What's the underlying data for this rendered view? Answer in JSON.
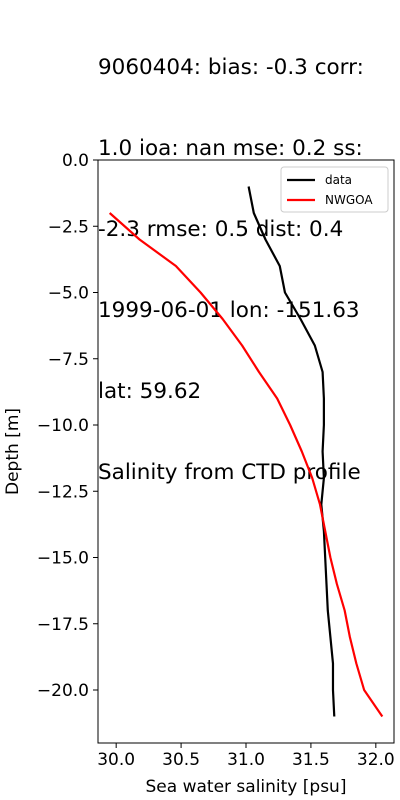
{
  "chart_data": {
    "type": "line",
    "title_lines": [
      "9060404: bias: -0.3  corr:",
      "1.0  ioa: nan  mse: 0.2  ss:",
      "-2.3  rmse: 0.5  dist: 0.4",
      "1999-06-01 lon: -151.63",
      "lat: 59.62",
      "Salinity from CTD profile"
    ],
    "xlabel": "Sea water salinity [psu]",
    "ylabel": "Depth [m]",
    "xlim": [
      29.86,
      32.14
    ],
    "ylim": [
      -22.0,
      0.0
    ],
    "xticks": [
      30.0,
      30.5,
      31.0,
      31.5,
      32.0
    ],
    "xtick_labels": [
      "30.0",
      "30.5",
      "31.0",
      "31.5",
      "32.0"
    ],
    "yticks": [
      0.0,
      -2.5,
      -5.0,
      -7.5,
      -10.0,
      -12.5,
      -15.0,
      -17.5,
      -20.0
    ],
    "ytick_labels": [
      "0.0",
      "−2.5",
      "−5.0",
      "−7.5",
      "−10.0",
      "−12.5",
      "−15.0",
      "−17.5",
      "−20.0"
    ],
    "grid": false,
    "legend_position": "upper right",
    "series": [
      {
        "name": "data",
        "color": "#000000",
        "points": [
          [
            31.02,
            -1.0
          ],
          [
            31.06,
            -2.0
          ],
          [
            31.15,
            -3.0
          ],
          [
            31.26,
            -4.0
          ],
          [
            31.3,
            -5.0
          ],
          [
            31.42,
            -6.0
          ],
          [
            31.53,
            -7.0
          ],
          [
            31.59,
            -8.0
          ],
          [
            31.6,
            -9.0
          ],
          [
            31.6,
            -10.0
          ],
          [
            31.59,
            -11.0
          ],
          [
            31.6,
            -12.0
          ],
          [
            31.58,
            -13.0
          ],
          [
            31.6,
            -14.0
          ],
          [
            31.61,
            -15.0
          ],
          [
            31.62,
            -16.0
          ],
          [
            31.63,
            -17.0
          ],
          [
            31.65,
            -18.0
          ],
          [
            31.67,
            -19.0
          ],
          [
            31.67,
            -20.0
          ],
          [
            31.68,
            -21.0
          ]
        ]
      },
      {
        "name": "NWGOA",
        "color": "#ff0000",
        "points": [
          [
            29.95,
            -2.0
          ],
          [
            30.18,
            -3.0
          ],
          [
            30.46,
            -4.0
          ],
          [
            30.65,
            -5.0
          ],
          [
            30.82,
            -6.0
          ],
          [
            30.97,
            -7.0
          ],
          [
            31.1,
            -8.0
          ],
          [
            31.24,
            -9.0
          ],
          [
            31.34,
            -10.0
          ],
          [
            31.43,
            -11.0
          ],
          [
            31.51,
            -12.0
          ],
          [
            31.57,
            -13.0
          ],
          [
            31.61,
            -14.0
          ],
          [
            31.65,
            -15.0
          ],
          [
            31.7,
            -16.0
          ],
          [
            31.76,
            -17.0
          ],
          [
            31.8,
            -18.0
          ],
          [
            31.85,
            -19.0
          ],
          [
            31.91,
            -20.0
          ],
          [
            32.05,
            -21.0
          ]
        ]
      }
    ]
  }
}
